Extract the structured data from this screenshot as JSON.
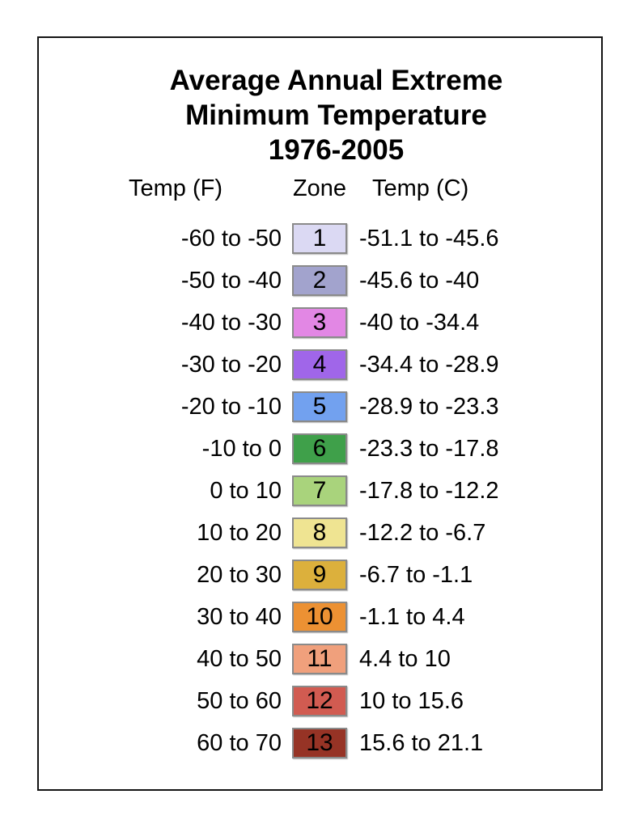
{
  "title": {
    "line1": "Average Annual Extreme",
    "line2": "Minimum Temperature",
    "line3": "1976-2005"
  },
  "headers": {
    "temp_f": "Temp (F)",
    "zone": "Zone",
    "temp_c": "Temp (C)"
  },
  "zones": [
    {
      "temp_f": "-60 to -50",
      "zone": "1",
      "temp_c": "-51.1 to -45.6",
      "color": "#dbd9f3"
    },
    {
      "temp_f": "-50 to -40",
      "zone": "2",
      "temp_c": "-45.6 to -40",
      "color": "#a2a3cd"
    },
    {
      "temp_f": "-40 to -30",
      "zone": "3",
      "temp_c": "-40 to -34.4",
      "color": "#e287e4"
    },
    {
      "temp_f": "-30 to -20",
      "zone": "4",
      "temp_c": "-34.4 to -28.9",
      "color": "#a066e9"
    },
    {
      "temp_f": "-20 to -10",
      "zone": "5",
      "temp_c": "-28.9 to -23.3",
      "color": "#72a1ef"
    },
    {
      "temp_f": "-10 to 0",
      "zone": "6",
      "temp_c": "-23.3 to -17.8",
      "color": "#3fa04a"
    },
    {
      "temp_f": "0 to 10",
      "zone": "7",
      "temp_c": "-17.8 to -12.2",
      "color": "#a9d37c"
    },
    {
      "temp_f": "10 to 20",
      "zone": "8",
      "temp_c": "-12.2 to -6.7",
      "color": "#efe492"
    },
    {
      "temp_f": "20 to 30",
      "zone": "9",
      "temp_c": "-6.7 to -1.1",
      "color": "#dcb03c"
    },
    {
      "temp_f": "30 to 40",
      "zone": "10",
      "temp_c": "-1.1 to 4.4",
      "color": "#ec9133"
    },
    {
      "temp_f": "40 to 50",
      "zone": "11",
      "temp_c": "4.4 to 10",
      "color": "#f0a07c"
    },
    {
      "temp_f": "50 to 60",
      "zone": "12",
      "temp_c": "10 to 15.6",
      "color": "#d15b51"
    },
    {
      "temp_f": "60 to 70",
      "zone": "13",
      "temp_c": "15.6 to 21.1",
      "color": "#963325"
    }
  ],
  "chart_data": {
    "type": "table",
    "title": "Average Annual Extreme Minimum Temperature 1976-2005",
    "columns": [
      "Temp (F)",
      "Zone",
      "Temp (C)"
    ],
    "rows": [
      [
        "-60 to -50",
        "1",
        "-51.1 to -45.6"
      ],
      [
        "-50 to -40",
        "2",
        "-45.6 to -40"
      ],
      [
        "-40 to -30",
        "3",
        "-40 to -34.4"
      ],
      [
        "-30 to -20",
        "4",
        "-34.4 to -28.9"
      ],
      [
        "-20 to -10",
        "5",
        "-28.9 to -23.3"
      ],
      [
        "-10 to 0",
        "6",
        "-23.3 to -17.8"
      ],
      [
        "0 to 10",
        "7",
        "-17.8 to -12.2"
      ],
      [
        "10 to 20",
        "8",
        "-12.2 to -6.7"
      ],
      [
        "20 to 30",
        "9",
        "-6.7 to -1.1"
      ],
      [
        "30 to 40",
        "10",
        "-1.1 to 4.4"
      ],
      [
        "40 to 50",
        "11",
        "4.4 to 10"
      ],
      [
        "50 to 60",
        "12",
        "10 to 15.6"
      ],
      [
        "60 to 70",
        "13",
        "15.6 to 21.1"
      ]
    ],
    "swatch_colors": [
      "#dbd9f3",
      "#a2a3cd",
      "#e287e4",
      "#a066e9",
      "#72a1ef",
      "#3fa04a",
      "#a9d37c",
      "#efe492",
      "#dcb03c",
      "#ec9133",
      "#f0a07c",
      "#d15b51",
      "#963325"
    ],
    "legend_position": "center",
    "grid": false
  }
}
